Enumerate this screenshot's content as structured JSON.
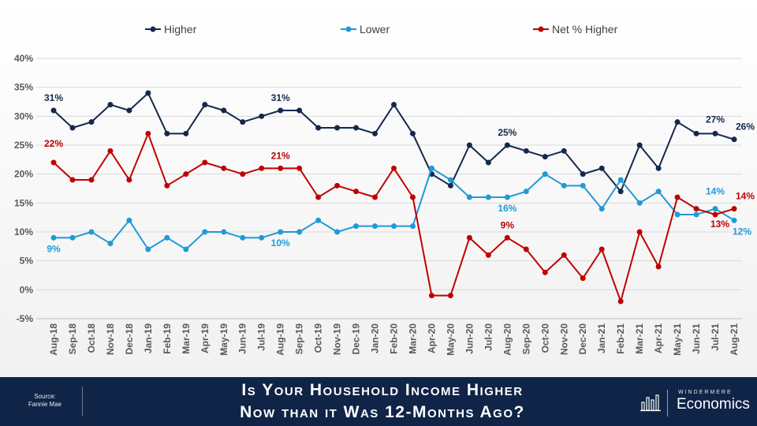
{
  "chart_data": {
    "type": "line",
    "title": "Is Your Household Income Higher Now than it Was 12-Months Ago?",
    "categories": [
      "Aug-18",
      "Sep-18",
      "Oct-18",
      "Nov-18",
      "Dec-18",
      "Jan-19",
      "Feb-19",
      "Mar-19",
      "Apr-19",
      "May-19",
      "Jun-19",
      "Jul-19",
      "Aug-19",
      "Sep-19",
      "Oct-19",
      "Nov-19",
      "Dec-19",
      "Jan-20",
      "Feb-20",
      "Mar-20",
      "Apr-20",
      "May-20",
      "Jun-20",
      "Jul-20",
      "Aug-20",
      "Sep-20",
      "Oct-20",
      "Nov-20",
      "Dec-20",
      "Jan-21",
      "Feb-21",
      "Mar-21",
      "Apr-21",
      "May-21",
      "Jun-21",
      "Jul-21",
      "Aug-21"
    ],
    "series": [
      {
        "name": "Higher",
        "color": "#14284b",
        "values": [
          31,
          28,
          29,
          32,
          31,
          34,
          27,
          27,
          32,
          31,
          29,
          30,
          31,
          31,
          28,
          28,
          28,
          27,
          32,
          27,
          20,
          18,
          25,
          22,
          25,
          24,
          23,
          24,
          20,
          21,
          17,
          25,
          21,
          29,
          27,
          27,
          26
        ],
        "labels": [
          {
            "index": 0,
            "text": "31%"
          },
          {
            "index": 12,
            "text": "31%"
          },
          {
            "index": 24,
            "text": "25%"
          },
          {
            "index": 35,
            "text": "27%"
          },
          {
            "index": 36,
            "text": "26%"
          }
        ]
      },
      {
        "name": "Lower",
        "color": "#1f9ad6",
        "values": [
          9,
          9,
          10,
          8,
          12,
          7,
          9,
          7,
          10,
          10,
          9,
          9,
          10,
          10,
          12,
          10,
          11,
          11,
          11,
          11,
          21,
          19,
          16,
          16,
          16,
          17,
          20,
          18,
          18,
          14,
          19,
          15,
          17,
          13,
          13,
          14,
          12
        ],
        "labels": [
          {
            "index": 0,
            "text": "9%"
          },
          {
            "index": 12,
            "text": "10%"
          },
          {
            "index": 24,
            "text": "16%"
          },
          {
            "index": 35,
            "text": "14%"
          },
          {
            "index": 36,
            "text": "12%"
          }
        ]
      },
      {
        "name": "Net % Higher",
        "color": "#c00000",
        "values": [
          22,
          19,
          19,
          24,
          19,
          27,
          18,
          20,
          22,
          21,
          20,
          21,
          21,
          21,
          16,
          18,
          17,
          16,
          21,
          16,
          -1,
          -1,
          9,
          6,
          9,
          7,
          3,
          6,
          2,
          7,
          -2,
          10,
          4,
          16,
          14,
          13,
          14
        ],
        "labels": [
          {
            "index": 0,
            "text": "22%"
          },
          {
            "index": 12,
            "text": "21%"
          },
          {
            "index": 24,
            "text": "9%"
          },
          {
            "index": 35,
            "text": "13%"
          },
          {
            "index": 36,
            "text": "14%"
          }
        ]
      }
    ],
    "ylim": [
      -5,
      40
    ],
    "yticks": [
      "-5%",
      "0%",
      "5%",
      "10%",
      "15%",
      "20%",
      "25%",
      "30%",
      "35%",
      "40%"
    ],
    "grid": true,
    "legend_position": "top"
  },
  "footer": {
    "source_line1": "Source:",
    "source_line2": "Fannie Mae",
    "title_line1": "Is Your Household Income Higher",
    "title_line2": "Now than it Was 12-Months Ago?",
    "brand_top": "WINDERMERE",
    "brand_bottom": "Economics"
  },
  "colors": {
    "footer_bg": "#0f2446",
    "grid": "#d9d9d9",
    "axis_text": "#595959"
  }
}
